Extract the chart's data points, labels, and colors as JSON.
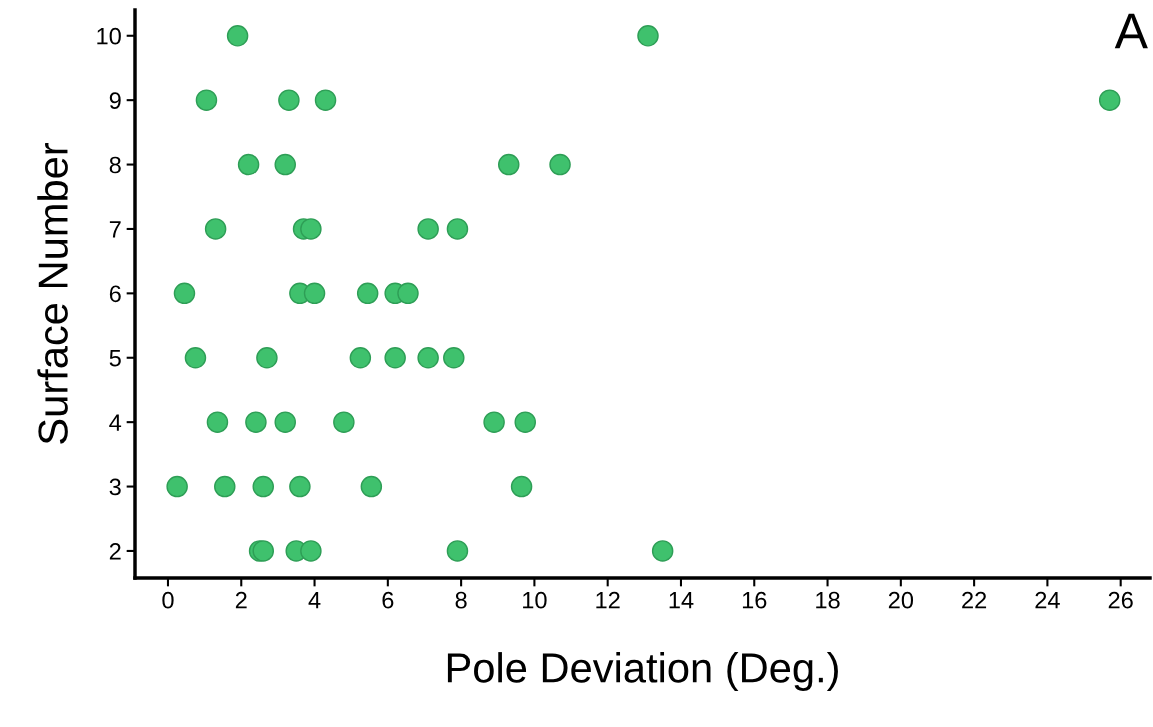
{
  "chart_data": {
    "type": "scatter",
    "xlabel": "Pole Deviation (Deg.)",
    "ylabel": "Surface Number",
    "annotations": [
      "A"
    ],
    "series": [
      {
        "color": "#3fc16d",
        "x": [
          1.9,
          13.1,
          1.05,
          3.3,
          4.3,
          25.7,
          2.2,
          3.2,
          9.3,
          10.7,
          1.3,
          3.7,
          3.9,
          7.1,
          7.9,
          0.45,
          3.6,
          4.0,
          5.45,
          6.2,
          6.55,
          0.75,
          2.7,
          5.25,
          6.2,
          7.1,
          7.8,
          1.35,
          2.4,
          3.2,
          4.8,
          8.9,
          9.75,
          0.25,
          1.55,
          2.6,
          3.6,
          5.55,
          9.65,
          2.5,
          2.6,
          3.5,
          3.9,
          7.9,
          13.5
        ],
        "values": [
          10,
          10,
          9,
          9,
          9,
          9,
          8,
          8,
          8,
          8,
          7,
          7,
          7,
          7,
          7,
          6,
          6,
          6,
          6,
          6,
          6,
          5,
          5,
          5,
          5,
          5,
          5,
          4,
          4,
          4,
          4,
          4,
          4,
          3,
          3,
          3,
          3,
          3,
          3,
          2,
          2,
          2,
          2,
          2,
          2
        ]
      }
    ],
    "xlim": [
      -0.9,
      26.8
    ],
    "xticks": [
      0,
      2,
      4,
      6,
      8,
      10,
      12,
      14,
      16,
      18,
      20,
      22,
      24,
      26
    ],
    "ylim": [
      1.58,
      10.4
    ],
    "yticks": [
      2,
      3,
      4,
      5,
      6,
      7,
      8,
      9,
      10
    ],
    "marker": "circle",
    "grid": false,
    "legend": false
  }
}
